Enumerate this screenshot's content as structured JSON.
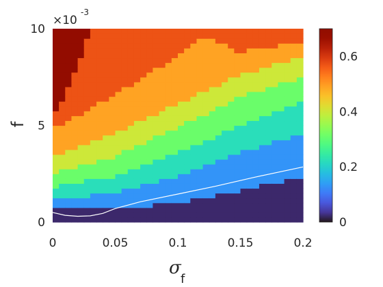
{
  "chart_data": {
    "type": "heatmap",
    "xlabel": "σ",
    "xlabel_sub": "f",
    "ylabel": "f",
    "y_multiplier": "×10",
    "y_multiplier_exp": "-3",
    "xlim": [
      0,
      0.2
    ],
    "ylim": [
      0,
      10
    ],
    "xticks": [
      "0",
      "0.05",
      "0.1",
      "0.15",
      "0.2"
    ],
    "yticks": [
      "0",
      "5",
      "10"
    ],
    "colorbar": {
      "range": [
        0,
        0.7
      ],
      "ticks": [
        "0",
        "0.2",
        "0.4",
        "0.6"
      ],
      "colormap": "turbo"
    },
    "grid_size": {
      "nx": 40,
      "ny": 40
    },
    "levels": [
      0.02,
      0.13,
      0.22,
      0.31,
      0.4,
      0.49,
      0.57,
      0.68
    ],
    "boundaries_y_vs_sigma": [
      {
        "sigma": [
          0,
          0.05,
          0.1,
          0.15,
          0.2
        ],
        "y": [
          0.7,
          0.7,
          1.0,
          1.6,
          2.4
        ]
      },
      {
        "sigma": [
          0,
          0.05,
          0.1,
          0.15,
          0.2
        ],
        "y": [
          1.2,
          1.5,
          2.4,
          3.6,
          4.6
        ]
      },
      {
        "sigma": [
          0,
          0.05,
          0.1,
          0.15,
          0.2
        ],
        "y": [
          1.8,
          2.4,
          3.6,
          5.0,
          6.3
        ]
      },
      {
        "sigma": [
          0,
          0.05,
          0.1,
          0.15,
          0.2
        ],
        "y": [
          2.5,
          3.4,
          4.9,
          6.5,
          7.5
        ]
      },
      {
        "sigma": [
          0,
          0.05,
          0.1,
          0.15,
          0.2
        ],
        "y": [
          3.4,
          4.6,
          6.1,
          7.6,
          8.6
        ]
      },
      {
        "sigma": [
          0,
          0.05,
          0.1,
          0.15,
          0.2
        ],
        "y": [
          4.8,
          6.6,
          8.6,
          11,
          11
        ]
      }
    ],
    "peach_region": {
      "sigma": [
        0.1,
        0.12,
        0.15,
        0.18,
        0.2
      ],
      "lower": [
        11,
        9.6,
        8.8,
        9.1,
        9.4
      ],
      "upper": [
        11,
        11,
        11,
        11,
        11
      ]
    },
    "top_left_dark_boundary": {
      "y": [
        10,
        8,
        7,
        6,
        5.5
      ],
      "sigma": [
        0.03,
        0.02,
        0.012,
        0.005,
        0.0
      ]
    },
    "curve": {
      "x": [
        0.0,
        0.01,
        0.02,
        0.03,
        0.04,
        0.05,
        0.07,
        0.1,
        0.13,
        0.16,
        0.2
      ],
      "y": [
        0.5,
        0.35,
        0.3,
        0.32,
        0.45,
        0.7,
        1.05,
        1.45,
        1.85,
        2.3,
        2.85
      ]
    }
  }
}
